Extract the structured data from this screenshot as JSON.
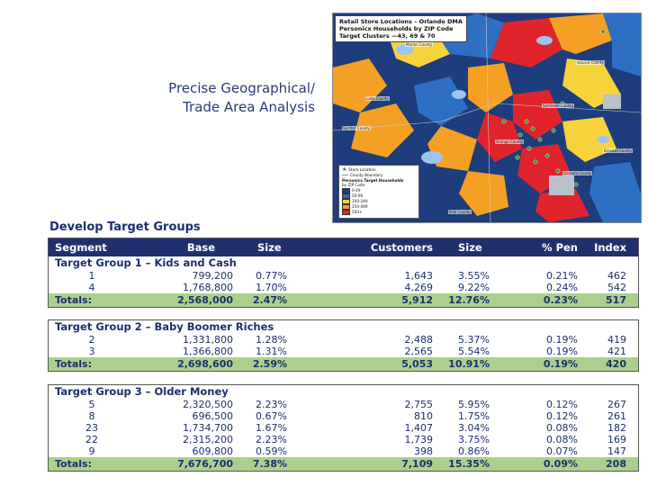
{
  "heading": {
    "line1": "Precise Geographical/",
    "line2": "Trade Area Analysis"
  },
  "map": {
    "title_line1": "Retail Store Locations – Orlando DMA",
    "title_line2": "Personicx Households by ZIP Code",
    "title_line3": "Target Clusters —43, 69 & 70",
    "counties": [
      "Marion County",
      "Volusia County",
      "Lake County",
      "Sumter County",
      "Orange County",
      "Seminole County",
      "Osceola County",
      "Polk County",
      "Brevard County"
    ],
    "legend": {
      "store": "Store Location",
      "boundary": "County Boundary",
      "title": "Personicx Target Households",
      "subtitle": "by ZIP Code",
      "ranges": [
        "0-49",
        "50-99",
        "100-249",
        "250-499",
        "500+"
      ]
    },
    "colors": {
      "dark_blue": "#1d3d7c",
      "mid_blue": "#2e6fc4",
      "light_blue": "#9fc3ef",
      "orange": "#f4a024",
      "yellow": "#f7d33b",
      "red": "#e0242c",
      "grey": "#b9c2cc"
    }
  },
  "section_title": "Develop Target Groups",
  "header": {
    "segment": "Segment",
    "base": "Base",
    "size": "Size",
    "customers": "Customers",
    "size2": "Size",
    "pen": "% Pen",
    "index": "Index"
  },
  "groups": [
    {
      "title": "Target Group 1 – Kids and Cash",
      "rows": [
        {
          "segment": "1",
          "base": "799,200",
          "size": "0.77%",
          "customers": "1,643",
          "size2": "3.55%",
          "pen": "0.21%",
          "index": "462"
        },
        {
          "segment": "4",
          "base": "1,768,800",
          "size": "1.70%",
          "customers": "4,269",
          "size2": "9.22%",
          "pen": "0.24%",
          "index": "542"
        }
      ],
      "totals": {
        "label": "Totals:",
        "base": "2,568,000",
        "size": "2.47%",
        "customers": "5,912",
        "size2": "12.76%",
        "pen": "0.23%",
        "index": "517"
      }
    },
    {
      "title": "Target Group 2 – Baby Boomer Riches",
      "rows": [
        {
          "segment": "2",
          "base": "1,331,800",
          "size": "1.28%",
          "customers": "2,488",
          "size2": "5.37%",
          "pen": "0.19%",
          "index": "419"
        },
        {
          "segment": "3",
          "base": "1,366,800",
          "size": "1.31%",
          "customers": "2,565",
          "size2": "5.54%",
          "pen": "0.19%",
          "index": "421"
        }
      ],
      "totals": {
        "label": "Totals:",
        "base": "2,698,600",
        "size": "2.59%",
        "customers": "5,053",
        "size2": "10.91%",
        "pen": "0.19%",
        "index": "420"
      }
    },
    {
      "title": "Target Group 3 – Older Money",
      "rows": [
        {
          "segment": "5",
          "base": "2,320,500",
          "size": "2.23%",
          "customers": "2,755",
          "size2": "5.95%",
          "pen": "0.12%",
          "index": "267"
        },
        {
          "segment": "8",
          "base": "696,500",
          "size": "0.67%",
          "customers": "810",
          "size2": "1.75%",
          "pen": "0.12%",
          "index": "261"
        },
        {
          "segment": "23",
          "base": "1,734,700",
          "size": "1.67%",
          "customers": "1,407",
          "size2": "3.04%",
          "pen": "0.08%",
          "index": "182"
        },
        {
          "segment": "22",
          "base": "2,315,200",
          "size": "2.23%",
          "customers": "1,739",
          "size2": "3.75%",
          "pen": "0.08%",
          "index": "169"
        },
        {
          "segment": "9",
          "base": "609,800",
          "size": "0.59%",
          "customers": "398",
          "size2": "0.86%",
          "pen": "0.07%",
          "index": "147"
        }
      ],
      "totals": {
        "label": "Totals:",
        "base": "7,676,700",
        "size": "7.38%",
        "customers": "7,109",
        "size2": "15.35%",
        "pen": "0.09%",
        "index": "208"
      }
    }
  ]
}
